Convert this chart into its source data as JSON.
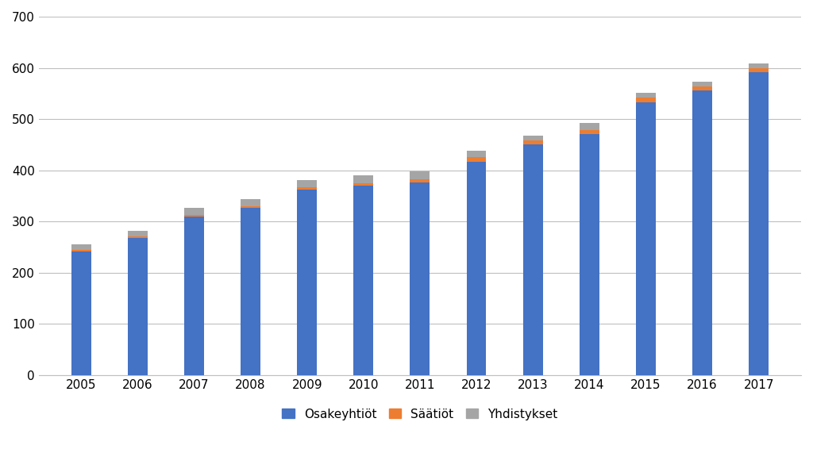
{
  "years": [
    2005,
    2006,
    2007,
    2008,
    2009,
    2010,
    2011,
    2012,
    2013,
    2014,
    2015,
    2016,
    2017
  ],
  "osakeyhtiöt": [
    242,
    268,
    310,
    327,
    362,
    370,
    376,
    417,
    450,
    470,
    532,
    556,
    592
  ],
  "säätiöt": [
    3,
    3,
    3,
    3,
    5,
    5,
    7,
    8,
    8,
    8,
    10,
    8,
    8
  ],
  "yhdistykset": [
    10,
    10,
    14,
    14,
    13,
    15,
    15,
    13,
    10,
    14,
    9,
    9,
    9
  ],
  "color_osakeyhtiöt": "#4472c4",
  "color_säätiöt": "#ed7d31",
  "color_yhdistykset": "#a5a5a5",
  "legend_labels": [
    "Osakeyhtiöt",
    "Säätiöt",
    "Yhdistykset"
  ],
  "ylim": [
    0,
    700
  ],
  "yticks": [
    0,
    100,
    200,
    300,
    400,
    500,
    600,
    700
  ],
  "background_color": "#ffffff",
  "grid_color": "#bfbfbf",
  "bar_width": 0.35
}
